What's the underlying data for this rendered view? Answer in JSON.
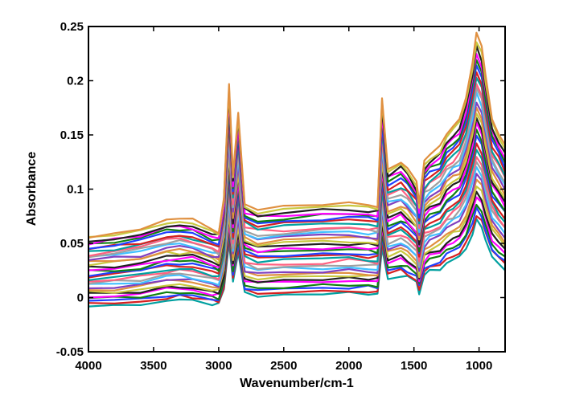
{
  "chart_data": {
    "type": "line",
    "title": "",
    "xlabel": "Wavenumber/cm-1",
    "ylabel": "Absorbance",
    "xlim": [
      4000,
      800
    ],
    "ylim": [
      -0.05,
      0.25
    ],
    "x_reversed": true,
    "grid": false,
    "legend": "none",
    "x_ticks": [
      4000,
      3500,
      3000,
      2500,
      2000,
      1500,
      1000
    ],
    "x_tick_labels": [
      "4000",
      "3500",
      "3000",
      "2500",
      "2000",
      "1500",
      "1000"
    ],
    "y_ticks": [
      -0.05,
      0,
      0.05,
      0.1,
      0.15,
      0.2,
      0.25
    ],
    "y_tick_labels": [
      "-0.05",
      "0",
      "0.05",
      "0.1",
      "0.15",
      "0.2",
      "0.25"
    ],
    "series_count": 32,
    "series_colors": [
      "#00a0a0",
      "#d62020",
      "#2040ff",
      "#108010",
      "#ff00ff",
      "#202020",
      "#c8c840",
      "#e09040",
      "#8040c0",
      "#40c0ff",
      "#a0a0a0",
      "#ff6080"
    ],
    "x": [
      4000,
      3800,
      3600,
      3400,
      3300,
      3200,
      3050,
      3000,
      2960,
      2920,
      2890,
      2850,
      2800,
      2700,
      2500,
      2200,
      2000,
      1850,
      1780,
      1745,
      1700,
      1600,
      1550,
      1480,
      1460,
      1420,
      1380,
      1300,
      1250,
      1200,
      1150,
      1100,
      1050,
      1020,
      980,
      950,
      900,
      850,
      800
    ],
    "mean_profile": [
      0.047,
      0.049,
      0.052,
      0.058,
      0.059,
      0.058,
      0.052,
      0.05,
      0.075,
      0.155,
      0.09,
      0.135,
      0.07,
      0.066,
      0.067,
      0.069,
      0.07,
      0.069,
      0.068,
      0.145,
      0.095,
      0.1,
      0.095,
      0.085,
      0.07,
      0.1,
      0.105,
      0.11,
      0.12,
      0.125,
      0.13,
      0.145,
      0.17,
      0.19,
      0.18,
      0.16,
      0.13,
      0.12,
      0.11
    ],
    "series_range": {
      "top_series_peak": 0.238,
      "top_series_at_4000": 0.06,
      "bottom_series_at_4000": 0.01,
      "bottom_series_at_1000": 0.085
    }
  }
}
